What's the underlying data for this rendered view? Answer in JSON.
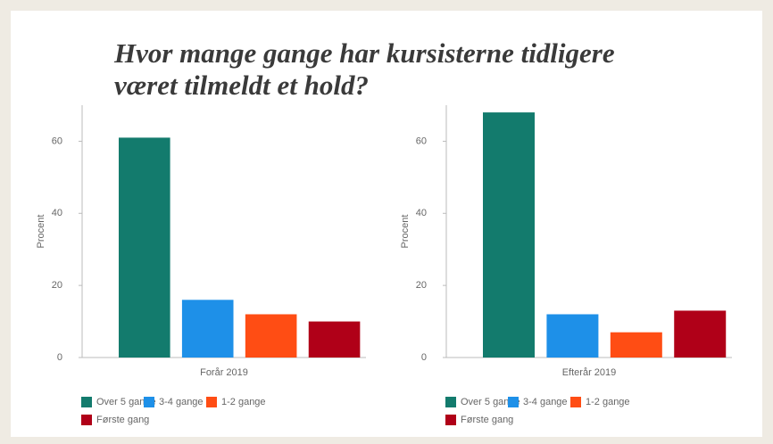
{
  "title": "Hvor mange gange har kursisterne tidligere\nværet tilmeldt et hold?",
  "chart_data": [
    {
      "type": "bar",
      "ylabel": "Procent",
      "categories": [
        "Forår 2019"
      ],
      "series": [
        {
          "name": "Over 5 gange",
          "color": "#137b6d",
          "values": [
            61
          ]
        },
        {
          "name": "3-4 gange",
          "color": "#1e90e8",
          "values": [
            16
          ]
        },
        {
          "name": "1-2 gange",
          "color": "#ff4d14",
          "values": [
            12
          ]
        },
        {
          "name": "Første gang",
          "color": "#b00018",
          "values": [
            10
          ]
        }
      ],
      "ylim": [
        0,
        70
      ],
      "yticks": [
        0,
        20,
        40,
        60
      ]
    },
    {
      "type": "bar",
      "ylabel": "Procent",
      "categories": [
        "Efterår 2019"
      ],
      "series": [
        {
          "name": "Over 5 gange",
          "color": "#137b6d",
          "values": [
            68
          ]
        },
        {
          "name": "3-4 gange",
          "color": "#1e90e8",
          "values": [
            12
          ]
        },
        {
          "name": "1-2 gange",
          "color": "#ff4d14",
          "values": [
            7
          ]
        },
        {
          "name": "Første gang",
          "color": "#b00018",
          "values": [
            13
          ]
        }
      ],
      "ylim": [
        0,
        70
      ],
      "yticks": [
        0,
        20,
        40,
        60
      ]
    }
  ]
}
